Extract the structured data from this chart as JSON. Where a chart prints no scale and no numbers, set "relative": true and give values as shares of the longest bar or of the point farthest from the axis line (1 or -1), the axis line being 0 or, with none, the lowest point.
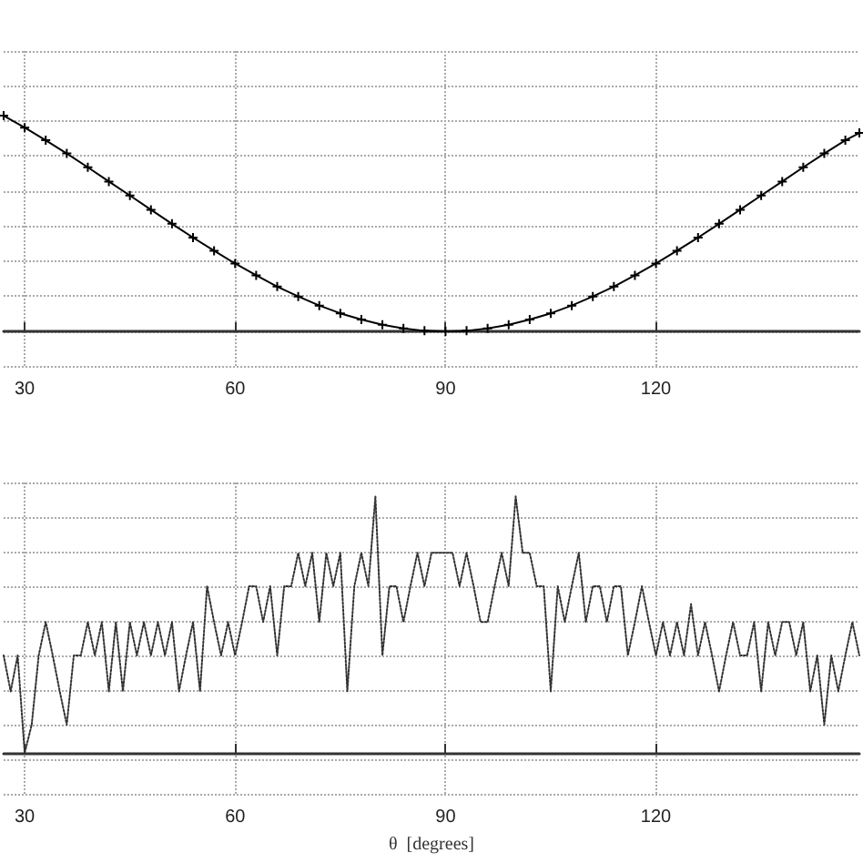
{
  "chart_data": [
    {
      "type": "line",
      "relative": true,
      "marker": "cross",
      "line_style": "solid",
      "grid": true,
      "xlim": [
        27,
        149
      ],
      "xticks": [
        30,
        60,
        90,
        120
      ],
      "series": [
        {
          "color": "#000000",
          "x": [
            27,
            30,
            33,
            36,
            39,
            42,
            45,
            48,
            51,
            54,
            57,
            60,
            63,
            66,
            69,
            72,
            75,
            78,
            81,
            84,
            87,
            90,
            93,
            96,
            99,
            102,
            105,
            108,
            111,
            114,
            117,
            120,
            123,
            126,
            129,
            132,
            135,
            138,
            141,
            144,
            147,
            149
          ],
          "values": [
            1.0,
            0.945,
            0.886,
            0.825,
            0.761,
            0.695,
            0.63,
            0.564,
            0.499,
            0.435,
            0.374,
            0.315,
            0.26,
            0.208,
            0.162,
            0.12,
            0.084,
            0.055,
            0.031,
            0.014,
            0.003,
            0,
            0.003,
            0.014,
            0.031,
            0.055,
            0.084,
            0.12,
            0.162,
            0.208,
            0.26,
            0.315,
            0.374,
            0.435,
            0.499,
            0.564,
            0.63,
            0.695,
            0.761,
            0.825,
            0.886,
            0.92
          ]
        }
      ]
    },
    {
      "type": "line",
      "relative": true,
      "marker": "none",
      "line_style": "dotted",
      "grid": true,
      "xlim": [
        27,
        149
      ],
      "xticks": [
        30,
        60,
        90,
        120
      ],
      "xlabel": "θ  [degrees]",
      "series": [
        {
          "color": "#333333",
          "x": [
            27,
            28,
            29,
            30,
            31,
            32,
            33,
            34,
            35,
            36,
            37,
            38,
            39,
            40,
            41,
            42,
            43,
            44,
            45,
            46,
            47,
            48,
            49,
            50,
            51,
            52,
            53,
            54,
            55,
            56,
            57,
            58,
            59,
            60,
            61,
            62,
            63,
            64,
            65,
            66,
            67,
            68,
            69,
            70,
            71,
            72,
            73,
            74,
            75,
            76,
            77,
            78,
            79,
            80,
            81,
            82,
            83,
            84,
            85,
            86,
            87,
            88,
            89,
            90,
            91,
            92,
            93,
            94,
            95,
            96,
            97,
            98,
            99,
            100,
            101,
            102,
            103,
            104,
            105,
            106,
            107,
            108,
            109,
            110,
            111,
            112,
            113,
            114,
            115,
            116,
            117,
            118,
            119,
            120,
            121,
            122,
            123,
            124,
            125,
            126,
            127,
            128,
            129,
            130,
            131,
            132,
            133,
            134,
            135,
            136,
            137,
            138,
            139,
            140,
            141,
            142,
            143,
            144,
            145,
            146,
            147,
            148,
            149
          ],
          "values": [
            0.38,
            0.24,
            0.38,
            0,
            0.11,
            0.38,
            0.51,
            0.38,
            0.24,
            0.11,
            0.38,
            0.38,
            0.51,
            0.38,
            0.51,
            0.24,
            0.51,
            0.24,
            0.51,
            0.38,
            0.51,
            0.38,
            0.51,
            0.38,
            0.51,
            0.24,
            0.38,
            0.51,
            0.24,
            0.65,
            0.51,
            0.38,
            0.51,
            0.38,
            0.51,
            0.65,
            0.65,
            0.51,
            0.65,
            0.38,
            0.65,
            0.65,
            0.78,
            0.65,
            0.78,
            0.51,
            0.78,
            0.65,
            0.78,
            0.24,
            0.65,
            0.78,
            0.65,
            1,
            0.38,
            0.65,
            0.65,
            0.51,
            0.65,
            0.78,
            0.65,
            0.78,
            0.78,
            0.78,
            0.78,
            0.65,
            0.78,
            0.65,
            0.51,
            0.51,
            0.65,
            0.78,
            0.65,
            1,
            0.78,
            0.78,
            0.65,
            0.65,
            0.24,
            0.65,
            0.51,
            0.65,
            0.78,
            0.51,
            0.65,
            0.65,
            0.51,
            0.65,
            0.65,
            0.38,
            0.51,
            0.65,
            0.51,
            0.38,
            0.51,
            0.38,
            0.51,
            0.38,
            0.58,
            0.38,
            0.51,
            0.38,
            0.24,
            0.38,
            0.51,
            0.38,
            0.38,
            0.51,
            0.24,
            0.51,
            0.38,
            0.51,
            0.51,
            0.38,
            0.51,
            0.24,
            0.38,
            0.11,
            0.38,
            0.24,
            0.38,
            0.51,
            0.38
          ]
        }
      ]
    }
  ]
}
